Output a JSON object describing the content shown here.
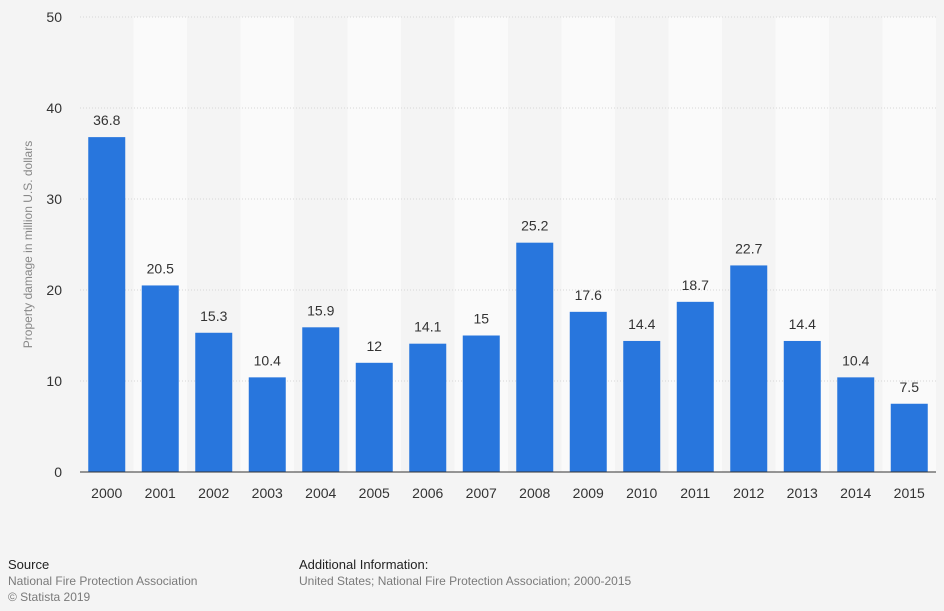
{
  "chart_data": {
    "type": "bar",
    "categories": [
      "2000",
      "2001",
      "2002",
      "2003",
      "2004",
      "2005",
      "2006",
      "2007",
      "2008",
      "2009",
      "2010",
      "2011",
      "2012",
      "2013",
      "2014",
      "2015"
    ],
    "values": [
      36.8,
      20.5,
      15.3,
      10.4,
      15.9,
      12,
      14.1,
      15,
      25.2,
      17.6,
      14.4,
      18.7,
      22.7,
      14.4,
      10.4,
      7.5
    ],
    "value_labels": [
      "36.8",
      "20.5",
      "15.3",
      "10.4",
      "15.9",
      "12",
      "14.1",
      "15",
      "25.2",
      "17.6",
      "14.4",
      "18.7",
      "22.7",
      "14.4",
      "10.4",
      "7.5"
    ],
    "ylabel": "Property damage in million U.S. dollars",
    "xlabel": "",
    "ylim": [
      0,
      50
    ],
    "yticks": [
      0,
      10,
      20,
      30,
      40,
      50
    ],
    "grid": true,
    "bar_color": "#2876dd"
  },
  "footer": {
    "source_title": "Source",
    "source_name": "National Fire Protection Association",
    "copyright": "© Statista 2019",
    "info_title": "Additional Information:",
    "info_text": "United States; National Fire Protection Association; 2000-2015"
  }
}
